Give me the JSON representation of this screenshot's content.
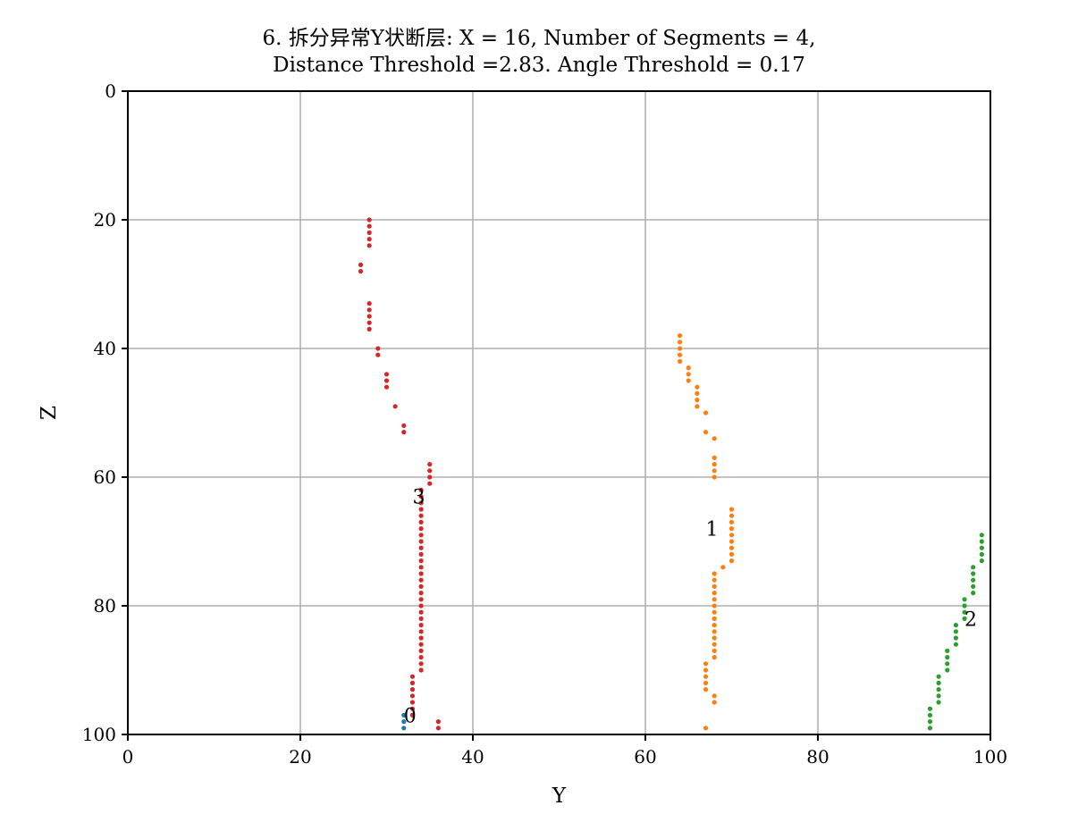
{
  "chart_data": {
    "type": "scatter",
    "title_line1": "6. 拆分异常Y状断层: X = 16, Number of Segments = 4,",
    "title_line2": "Distance Threshold =2.83. Angle Threshold = 0.17",
    "xlabel": "Y",
    "ylabel": "Z",
    "xlim": [
      0,
      100
    ],
    "ylim": [
      100,
      0
    ],
    "y_inverted": true,
    "grid": true,
    "x_ticks": [
      0,
      20,
      40,
      60,
      80,
      100
    ],
    "y_ticks": [
      0,
      20,
      40,
      60,
      80,
      100
    ],
    "series": [
      {
        "color": "#1f77b4",
        "points": [
          [
            32,
            97
          ],
          [
            32,
            98
          ],
          [
            32,
            99
          ]
        ],
        "annotation": {
          "text": "0",
          "x": 32,
          "y": 97
        }
      },
      {
        "color": "#ff7f0e",
        "points": [
          [
            64,
            38
          ],
          [
            64,
            39
          ],
          [
            64,
            40
          ],
          [
            64,
            41
          ],
          [
            64,
            42
          ],
          [
            65,
            43
          ],
          [
            65,
            44
          ],
          [
            65,
            45
          ],
          [
            66,
            46
          ],
          [
            66,
            47
          ],
          [
            66,
            48
          ],
          [
            66,
            49
          ],
          [
            67,
            50
          ],
          [
            67,
            53
          ],
          [
            68,
            54
          ],
          [
            68,
            57
          ],
          [
            68,
            58
          ],
          [
            68,
            59
          ],
          [
            68,
            60
          ],
          [
            70,
            65
          ],
          [
            70,
            66
          ],
          [
            70,
            67
          ],
          [
            70,
            68
          ],
          [
            70,
            69
          ],
          [
            70,
            70
          ],
          [
            70,
            71
          ],
          [
            70,
            72
          ],
          [
            70,
            73
          ],
          [
            69,
            74
          ],
          [
            68,
            75
          ],
          [
            68,
            76
          ],
          [
            68,
            77
          ],
          [
            68,
            78
          ],
          [
            68,
            79
          ],
          [
            68,
            80
          ],
          [
            68,
            81
          ],
          [
            68,
            82
          ],
          [
            68,
            83
          ],
          [
            68,
            84
          ],
          [
            68,
            85
          ],
          [
            68,
            86
          ],
          [
            68,
            87
          ],
          [
            68,
            88
          ],
          [
            67,
            89
          ],
          [
            67,
            90
          ],
          [
            67,
            91
          ],
          [
            67,
            92
          ],
          [
            67,
            93
          ],
          [
            68,
            94
          ],
          [
            68,
            95
          ],
          [
            67,
            99
          ]
        ],
        "annotation": {
          "text": "1",
          "x": 67,
          "y": 68
        }
      },
      {
        "color": "#2ca02c",
        "points": [
          [
            99,
            69
          ],
          [
            99,
            70
          ],
          [
            99,
            71
          ],
          [
            99,
            72
          ],
          [
            99,
            73
          ],
          [
            98,
            74
          ],
          [
            98,
            75
          ],
          [
            98,
            76
          ],
          [
            98,
            77
          ],
          [
            98,
            78
          ],
          [
            97,
            79
          ],
          [
            97,
            80
          ],
          [
            97,
            81
          ],
          [
            97,
            82
          ],
          [
            96,
            83
          ],
          [
            96,
            84
          ],
          [
            96,
            85
          ],
          [
            96,
            86
          ],
          [
            95,
            87
          ],
          [
            95,
            88
          ],
          [
            95,
            89
          ],
          [
            95,
            90
          ],
          [
            94,
            91
          ],
          [
            94,
            92
          ],
          [
            94,
            93
          ],
          [
            94,
            94
          ],
          [
            94,
            95
          ],
          [
            93,
            96
          ],
          [
            93,
            97
          ],
          [
            93,
            98
          ],
          [
            93,
            99
          ]
        ],
        "annotation": {
          "text": "2",
          "x": 97,
          "y": 82
        }
      },
      {
        "color": "#d62728",
        "points": [
          [
            28,
            20
          ],
          [
            28,
            21
          ],
          [
            28,
            22
          ],
          [
            28,
            23
          ],
          [
            28,
            24
          ],
          [
            27,
            27
          ],
          [
            27,
            28
          ],
          [
            28,
            33
          ],
          [
            28,
            34
          ],
          [
            28,
            35
          ],
          [
            28,
            36
          ],
          [
            28,
            37
          ],
          [
            29,
            40
          ],
          [
            29,
            41
          ],
          [
            30,
            44
          ],
          [
            30,
            45
          ],
          [
            30,
            46
          ],
          [
            31,
            49
          ],
          [
            32,
            52
          ],
          [
            32,
            53
          ],
          [
            35,
            58
          ],
          [
            35,
            59
          ],
          [
            35,
            60
          ],
          [
            35,
            61
          ],
          [
            34,
            62
          ],
          [
            34,
            63
          ],
          [
            34,
            64
          ],
          [
            34,
            65
          ],
          [
            34,
            66
          ],
          [
            34,
            67
          ],
          [
            34,
            68
          ],
          [
            34,
            69
          ],
          [
            34,
            70
          ],
          [
            34,
            71
          ],
          [
            34,
            72
          ],
          [
            34,
            73
          ],
          [
            34,
            74
          ],
          [
            34,
            75
          ],
          [
            34,
            76
          ],
          [
            34,
            77
          ],
          [
            34,
            78
          ],
          [
            34,
            79
          ],
          [
            34,
            80
          ],
          [
            34,
            81
          ],
          [
            34,
            82
          ],
          [
            34,
            83
          ],
          [
            34,
            84
          ],
          [
            34,
            85
          ],
          [
            34,
            86
          ],
          [
            34,
            87
          ],
          [
            34,
            88
          ],
          [
            34,
            89
          ],
          [
            34,
            90
          ],
          [
            33,
            91
          ],
          [
            33,
            92
          ],
          [
            33,
            93
          ],
          [
            33,
            94
          ],
          [
            33,
            95
          ],
          [
            33,
            96
          ],
          [
            33,
            97
          ],
          [
            36,
            98
          ],
          [
            36,
            99
          ]
        ],
        "annotation": {
          "text": "3",
          "x": 33,
          "y": 63
        }
      }
    ]
  }
}
